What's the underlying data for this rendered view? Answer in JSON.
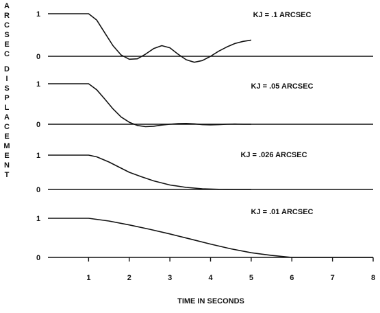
{
  "chart_data": {
    "type": "line",
    "ylabel": "ARCSEC DISPLACEMENT",
    "xlabel": "TIME IN SECONDS",
    "x_ticks": [
      "1",
      "2",
      "3",
      "4",
      "5",
      "6",
      "7",
      "8"
    ],
    "xlim": [
      0,
      8
    ],
    "panels": [
      {
        "label": "KJ = .1 ARCSEC",
        "y_ticks": [
          "1",
          "0"
        ],
        "ylim": [
          -0.2,
          1.1
        ],
        "x": [
          0,
          1,
          1.2,
          1.4,
          1.6,
          1.8,
          2.0,
          2.2,
          2.4,
          2.6,
          2.8,
          3.0,
          3.2,
          3.4,
          3.6,
          3.8,
          4.0,
          4.2,
          4.4,
          4.6,
          4.8,
          5.0
        ],
        "y": [
          1.0,
          1.0,
          0.85,
          0.55,
          0.25,
          0.03,
          -0.07,
          -0.06,
          0.05,
          0.18,
          0.25,
          0.2,
          0.05,
          -0.08,
          -0.14,
          -0.1,
          0.0,
          0.12,
          0.22,
          0.3,
          0.35,
          0.38
        ]
      },
      {
        "label": "KJ = .05 ARCSEC",
        "y_ticks": [
          "1",
          "0"
        ],
        "ylim": [
          -0.15,
          1.1
        ],
        "x": [
          0,
          1,
          1.2,
          1.4,
          1.6,
          1.8,
          2.0,
          2.2,
          2.4,
          2.6,
          2.8,
          3.0,
          3.2,
          3.4,
          3.6,
          3.8,
          4.0,
          4.2,
          4.4,
          4.6,
          4.8,
          5.0
        ],
        "y": [
          1.0,
          1.0,
          0.85,
          0.62,
          0.38,
          0.18,
          0.05,
          -0.03,
          -0.06,
          -0.05,
          -0.02,
          0.0,
          0.015,
          0.02,
          0.01,
          -0.01,
          -0.015,
          -0.01,
          0.0,
          0.005,
          0.0,
          0.0
        ]
      },
      {
        "label": "KJ = .026 ARCSEC",
        "y_ticks": [
          "1",
          "0"
        ],
        "ylim": [
          -0.1,
          1.1
        ],
        "x": [
          0,
          1,
          1.2,
          1.5,
          1.8,
          2.0,
          2.3,
          2.6,
          3.0,
          3.4,
          3.8,
          4.2,
          4.6,
          5.0
        ],
        "y": [
          1.0,
          1.0,
          0.95,
          0.8,
          0.62,
          0.5,
          0.37,
          0.25,
          0.13,
          0.06,
          0.02,
          0.005,
          0.0,
          0.0
        ]
      },
      {
        "label": "KJ = .01 ARCSEC",
        "y_ticks": [
          "1",
          "0"
        ],
        "ylim": [
          -0.1,
          1.1
        ],
        "x": [
          0,
          1,
          1.5,
          2.0,
          2.5,
          3.0,
          3.5,
          4.0,
          4.5,
          5.0,
          5.5,
          6.0,
          8.0
        ],
        "y": [
          1.0,
          1.0,
          0.93,
          0.83,
          0.72,
          0.6,
          0.47,
          0.34,
          0.22,
          0.12,
          0.05,
          0.0,
          0.0
        ]
      }
    ]
  }
}
